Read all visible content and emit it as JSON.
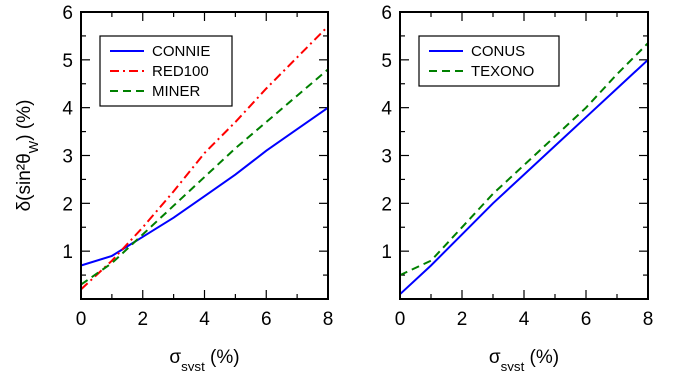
{
  "chart_data": [
    {
      "type": "line",
      "xlabel": "σ_syst (%)",
      "ylabel": "δ(sin²θ_W) (%)",
      "xlim": [
        0,
        8
      ],
      "ylim": [
        0,
        6
      ],
      "xticks": [
        "0",
        "2",
        "4",
        "6",
        "8"
      ],
      "yticks": [
        "1",
        "2",
        "3",
        "4",
        "5",
        "6"
      ],
      "legend_position": "top-left",
      "grid": false,
      "series": [
        {
          "name": "CONNIE",
          "color": "#0000ff",
          "dash": "solid",
          "x": [
            0,
            1,
            2,
            3,
            4,
            5,
            6,
            7,
            8
          ],
          "y": [
            0.7,
            0.9,
            1.3,
            1.7,
            2.15,
            2.6,
            3.1,
            3.55,
            4.0
          ]
        },
        {
          "name": "RED100",
          "color": "#ff0000",
          "dash": "dashdot",
          "x": [
            0,
            1,
            2,
            3,
            4,
            5,
            6,
            7,
            8
          ],
          "y": [
            0.2,
            0.8,
            1.5,
            2.25,
            3.05,
            3.7,
            4.4,
            5.05,
            5.7
          ]
        },
        {
          "name": "MINER",
          "color": "#008000",
          "dash": "dashed",
          "x": [
            0,
            1,
            2,
            3,
            4,
            5,
            6,
            7,
            8
          ],
          "y": [
            0.3,
            0.75,
            1.35,
            1.95,
            2.55,
            3.15,
            3.7,
            4.25,
            4.8
          ]
        }
      ]
    },
    {
      "type": "line",
      "xlabel": "σ_syst (%)",
      "ylabel": "",
      "xlim": [
        0,
        8
      ],
      "ylim": [
        0,
        6
      ],
      "xticks": [
        "0",
        "2",
        "4",
        "6",
        "8"
      ],
      "yticks": [
        "1",
        "2",
        "3",
        "4",
        "5",
        "6"
      ],
      "legend_position": "top-left",
      "grid": false,
      "series": [
        {
          "name": "CONUS",
          "color": "#0000ff",
          "dash": "solid",
          "x": [
            0,
            1,
            2,
            3,
            4,
            5,
            6,
            7,
            8
          ],
          "y": [
            0.1,
            0.7,
            1.35,
            2.0,
            2.6,
            3.2,
            3.8,
            4.4,
            5.0
          ]
        },
        {
          "name": "TEXONO",
          "color": "#008000",
          "dash": "dashed",
          "x": [
            0,
            1,
            2,
            3,
            4,
            5,
            6,
            7,
            8
          ],
          "y": [
            0.5,
            0.8,
            1.5,
            2.2,
            2.8,
            3.4,
            4.0,
            4.7,
            5.35
          ]
        }
      ]
    }
  ]
}
